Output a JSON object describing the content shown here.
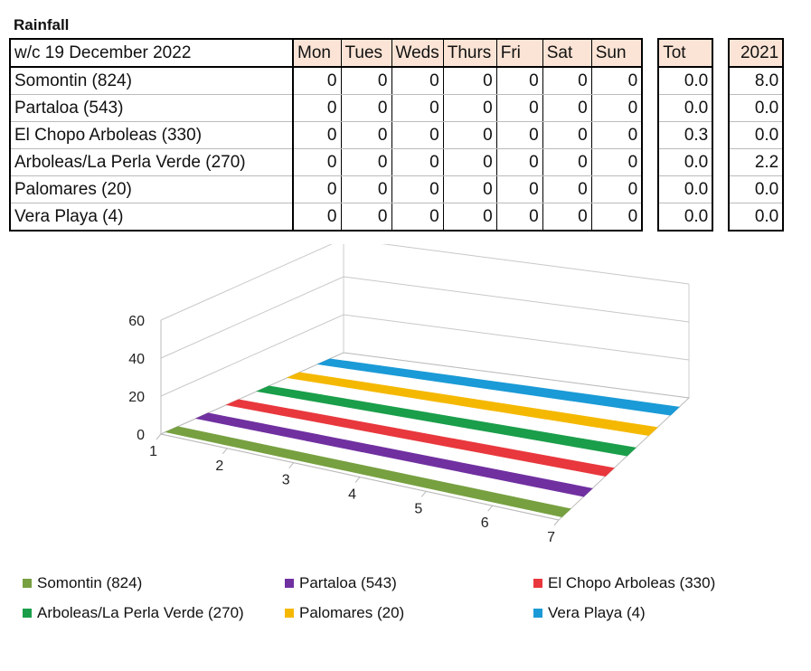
{
  "title": "Rainfall",
  "table": {
    "week_label": "w/c  19 December 2022",
    "days": [
      "Mon",
      "Tues",
      "Weds",
      "Thurs",
      "Fri",
      "Sat",
      "Sun"
    ],
    "tot_label": "Tot",
    "year_label": "2021",
    "rows": [
      {
        "name": "Somontin (824)",
        "days": [
          "0",
          "0",
          "0",
          "0",
          "0",
          "0",
          "0"
        ],
        "tot": "0.0",
        "year": "8.0"
      },
      {
        "name": "Partaloa (543)",
        "days": [
          "0",
          "0",
          "0",
          "0",
          "0",
          "0",
          "0"
        ],
        "tot": "0.0",
        "year": "0.0"
      },
      {
        "name": "El Chopo Arboleas (330)",
        "days": [
          "0",
          "0",
          "0",
          "0",
          "0",
          "0",
          "0"
        ],
        "tot": "0.3",
        "year": "0.0"
      },
      {
        "name": "Arboleas/La Perla Verde (270)",
        "days": [
          "0",
          "0",
          "0",
          "0",
          "0",
          "0",
          "0"
        ],
        "tot": "0.0",
        "year": "2.2"
      },
      {
        "name": "Palomares (20)",
        "days": [
          "0",
          "0",
          "0",
          "0",
          "0",
          "0",
          "0"
        ],
        "tot": "0.0",
        "year": "0.0"
      },
      {
        "name": "Vera Playa (4)",
        "days": [
          "0",
          "0",
          "0",
          "0",
          "0",
          "0",
          "0"
        ],
        "tot": "0.0",
        "year": "0.0"
      }
    ]
  },
  "chart_data": {
    "type": "bar",
    "subtype": "3d-column",
    "categories": [
      "1",
      "2",
      "3",
      "4",
      "5",
      "6",
      "7"
    ],
    "yticks": [
      "0",
      "20",
      "40",
      "60"
    ],
    "ylim": [
      0,
      60
    ],
    "series": [
      {
        "name": "Somontin (824)",
        "color": "#77a040",
        "values": [
          0,
          0,
          0,
          0,
          0,
          0,
          0
        ]
      },
      {
        "name": "Partaloa (543)",
        "color": "#7030a0",
        "values": [
          0,
          0,
          0,
          0,
          0,
          0,
          0
        ]
      },
      {
        "name": "El Chopo Arboleas (330)",
        "color": "#e8383d",
        "values": [
          0,
          0,
          0,
          0,
          0,
          0,
          0
        ]
      },
      {
        "name": "Arboleas/La Perla Verde (270)",
        "color": "#1a9e4a",
        "values": [
          0,
          0,
          0,
          0,
          0,
          0,
          0
        ]
      },
      {
        "name": "Palomares (20)",
        "color": "#f5b800",
        "values": [
          0,
          0,
          0,
          0,
          0,
          0,
          0
        ]
      },
      {
        "name": "Vera Playa (4)",
        "color": "#1a9ad6",
        "values": [
          0,
          0,
          0,
          0,
          0,
          0,
          0
        ]
      }
    ],
    "legend": "bottom"
  }
}
